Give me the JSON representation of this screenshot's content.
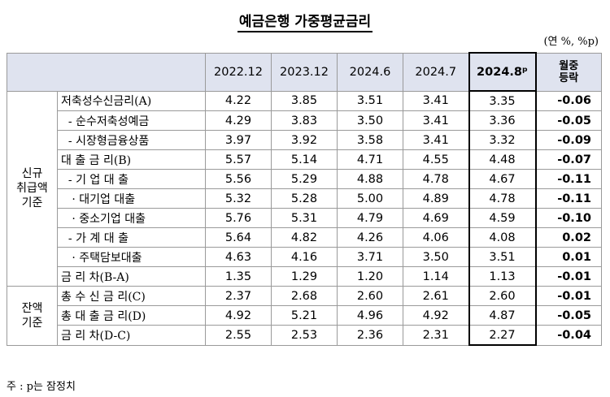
{
  "title": "예금은행 가중평균금리",
  "unit": "(연 %, %p)",
  "columns": [
    "2022.12",
    "2023.12",
    "2024.6",
    "2024.7",
    "2024.8ᵖ",
    "월중\n등락"
  ],
  "col_labels": {
    "c0": "2022.12",
    "c1": "2023.12",
    "c2": "2024.6",
    "c3": "2024.7",
    "c4": "2024.8ᵖ",
    "chg_l1": "월중",
    "chg_l2": "등락"
  },
  "groups": {
    "new": {
      "l1": "신규",
      "l2": "취급액",
      "l3": "기준"
    },
    "bal": {
      "l1": "잔액",
      "l2": "기준"
    }
  },
  "rows": [
    {
      "label": "저축성수신금리(A)",
      "v": [
        "4.22",
        "3.85",
        "3.51",
        "3.41",
        "3.35"
      ],
      "chg": "-0.06"
    },
    {
      "label": "  - 순수저축성예금",
      "v": [
        "4.29",
        "3.83",
        "3.50",
        "3.41",
        "3.36"
      ],
      "chg": "-0.05"
    },
    {
      "label": "  - 시장형금융상품",
      "v": [
        "3.97",
        "3.92",
        "3.58",
        "3.41",
        "3.32"
      ],
      "chg": "-0.09"
    },
    {
      "label": "대 출 금 리(B)",
      "v": [
        "5.57",
        "5.14",
        "4.71",
        "4.55",
        "4.48"
      ],
      "chg": "-0.07"
    },
    {
      "label": "  - 기 업 대 출",
      "v": [
        "5.56",
        "5.29",
        "4.88",
        "4.78",
        "4.67"
      ],
      "chg": "-0.11"
    },
    {
      "label": "   · 대기업 대출",
      "v": [
        "5.32",
        "5.28",
        "5.00",
        "4.89",
        "4.78"
      ],
      "chg": "-0.11"
    },
    {
      "label": "   · 중소기업 대출",
      "v": [
        "5.76",
        "5.31",
        "4.79",
        "4.69",
        "4.59"
      ],
      "chg": "-0.10"
    },
    {
      "label": "  - 가 계 대 출",
      "v": [
        "5.64",
        "4.82",
        "4.26",
        "4.06",
        "4.08"
      ],
      "chg": "0.02"
    },
    {
      "label": "   · 주택담보대출",
      "v": [
        "4.63",
        "4.16",
        "3.71",
        "3.50",
        "3.51"
      ],
      "chg": "0.01"
    },
    {
      "label": "금 리 차(B-A)",
      "v": [
        "1.35",
        "1.29",
        "1.20",
        "1.14",
        "1.13"
      ],
      "chg": "-0.01"
    },
    {
      "label": "총 수 신 금 리(C)",
      "v": [
        "2.37",
        "2.68",
        "2.60",
        "2.61",
        "2.60"
      ],
      "chg": "-0.01"
    },
    {
      "label": "총 대 출 금 리(D)",
      "v": [
        "4.92",
        "5.21",
        "4.96",
        "4.92",
        "4.87"
      ],
      "chg": "-0.05"
    },
    {
      "label": "금 리 차(D-C)",
      "v": [
        "2.55",
        "2.53",
        "2.36",
        "2.31",
        "2.27"
      ],
      "chg": "-0.04"
    }
  ],
  "note": "주 : p는 잠정치"
}
